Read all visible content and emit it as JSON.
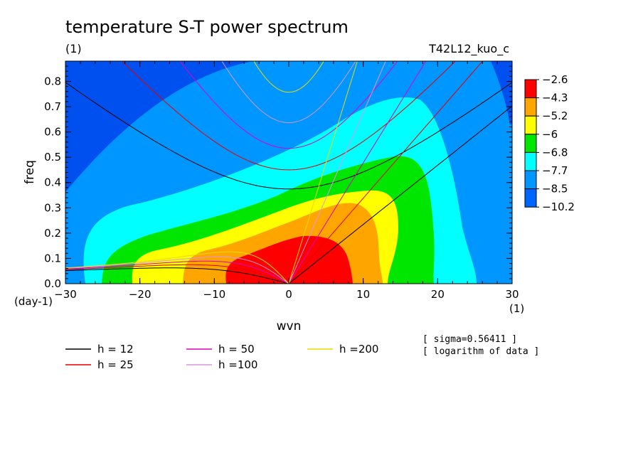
{
  "chart_data": {
    "type": "heatmap",
    "title": "temperature S-T power spectrum",
    "subtitle_left": "(1)",
    "subtitle_right": "T42L12_kuo_c",
    "xlabel": "wvn",
    "ylabel": "freq",
    "x_unit": "(1)",
    "y_unit": "(day-1)",
    "xlim": [
      -30,
      30
    ],
    "ylim": [
      0,
      0.88
    ],
    "x_ticks": [
      -30,
      -20,
      -10,
      0,
      10,
      20,
      30
    ],
    "x_tick_labels": [
      "−30",
      "−20",
      "−10",
      "0",
      "10",
      "20",
      "30"
    ],
    "y_ticks": [
      0,
      0.1,
      0.2,
      0.3,
      0.4,
      0.5,
      0.6,
      0.7,
      0.8
    ],
    "y_tick_labels": [
      "0.0",
      "0.1",
      "0.2",
      "0.3",
      "0.4",
      "0.5",
      "0.6",
      "0.7",
      "0.8"
    ],
    "colorbar": {
      "levels": [
        -2.6,
        -4.3,
        -5.2,
        -6,
        -6.8,
        -7.7,
        -8.5,
        -10.2
      ],
      "level_labels": [
        "−2.6",
        "−4.3",
        "−5.2",
        "−6",
        "−6.8",
        "−7.7",
        "−8.5",
        "−10.2"
      ],
      "colors": [
        "#ff0000",
        "#ffa500",
        "#ffff00",
        "#00e600",
        "#00ffff",
        "#0096ff",
        "#0064ff"
      ],
      "background_color": "#0050f0"
    },
    "notes": [
      "[ sigma=0.56411 ]",
      "[ logarithm of data ]"
    ],
    "dispersion_curves": [
      {
        "name": "h = 12",
        "h": 12,
        "color": "#000000"
      },
      {
        "name": "h = 25",
        "h": 25,
        "color": "#e60000"
      },
      {
        "name": "h = 50",
        "h": 50,
        "color": "#dc00c8"
      },
      {
        "name": "h =100",
        "h": 100,
        "color": "#dc96e6"
      },
      {
        "name": "h =200",
        "h": 200,
        "color": "#e6dc00"
      }
    ],
    "grid": false
  }
}
